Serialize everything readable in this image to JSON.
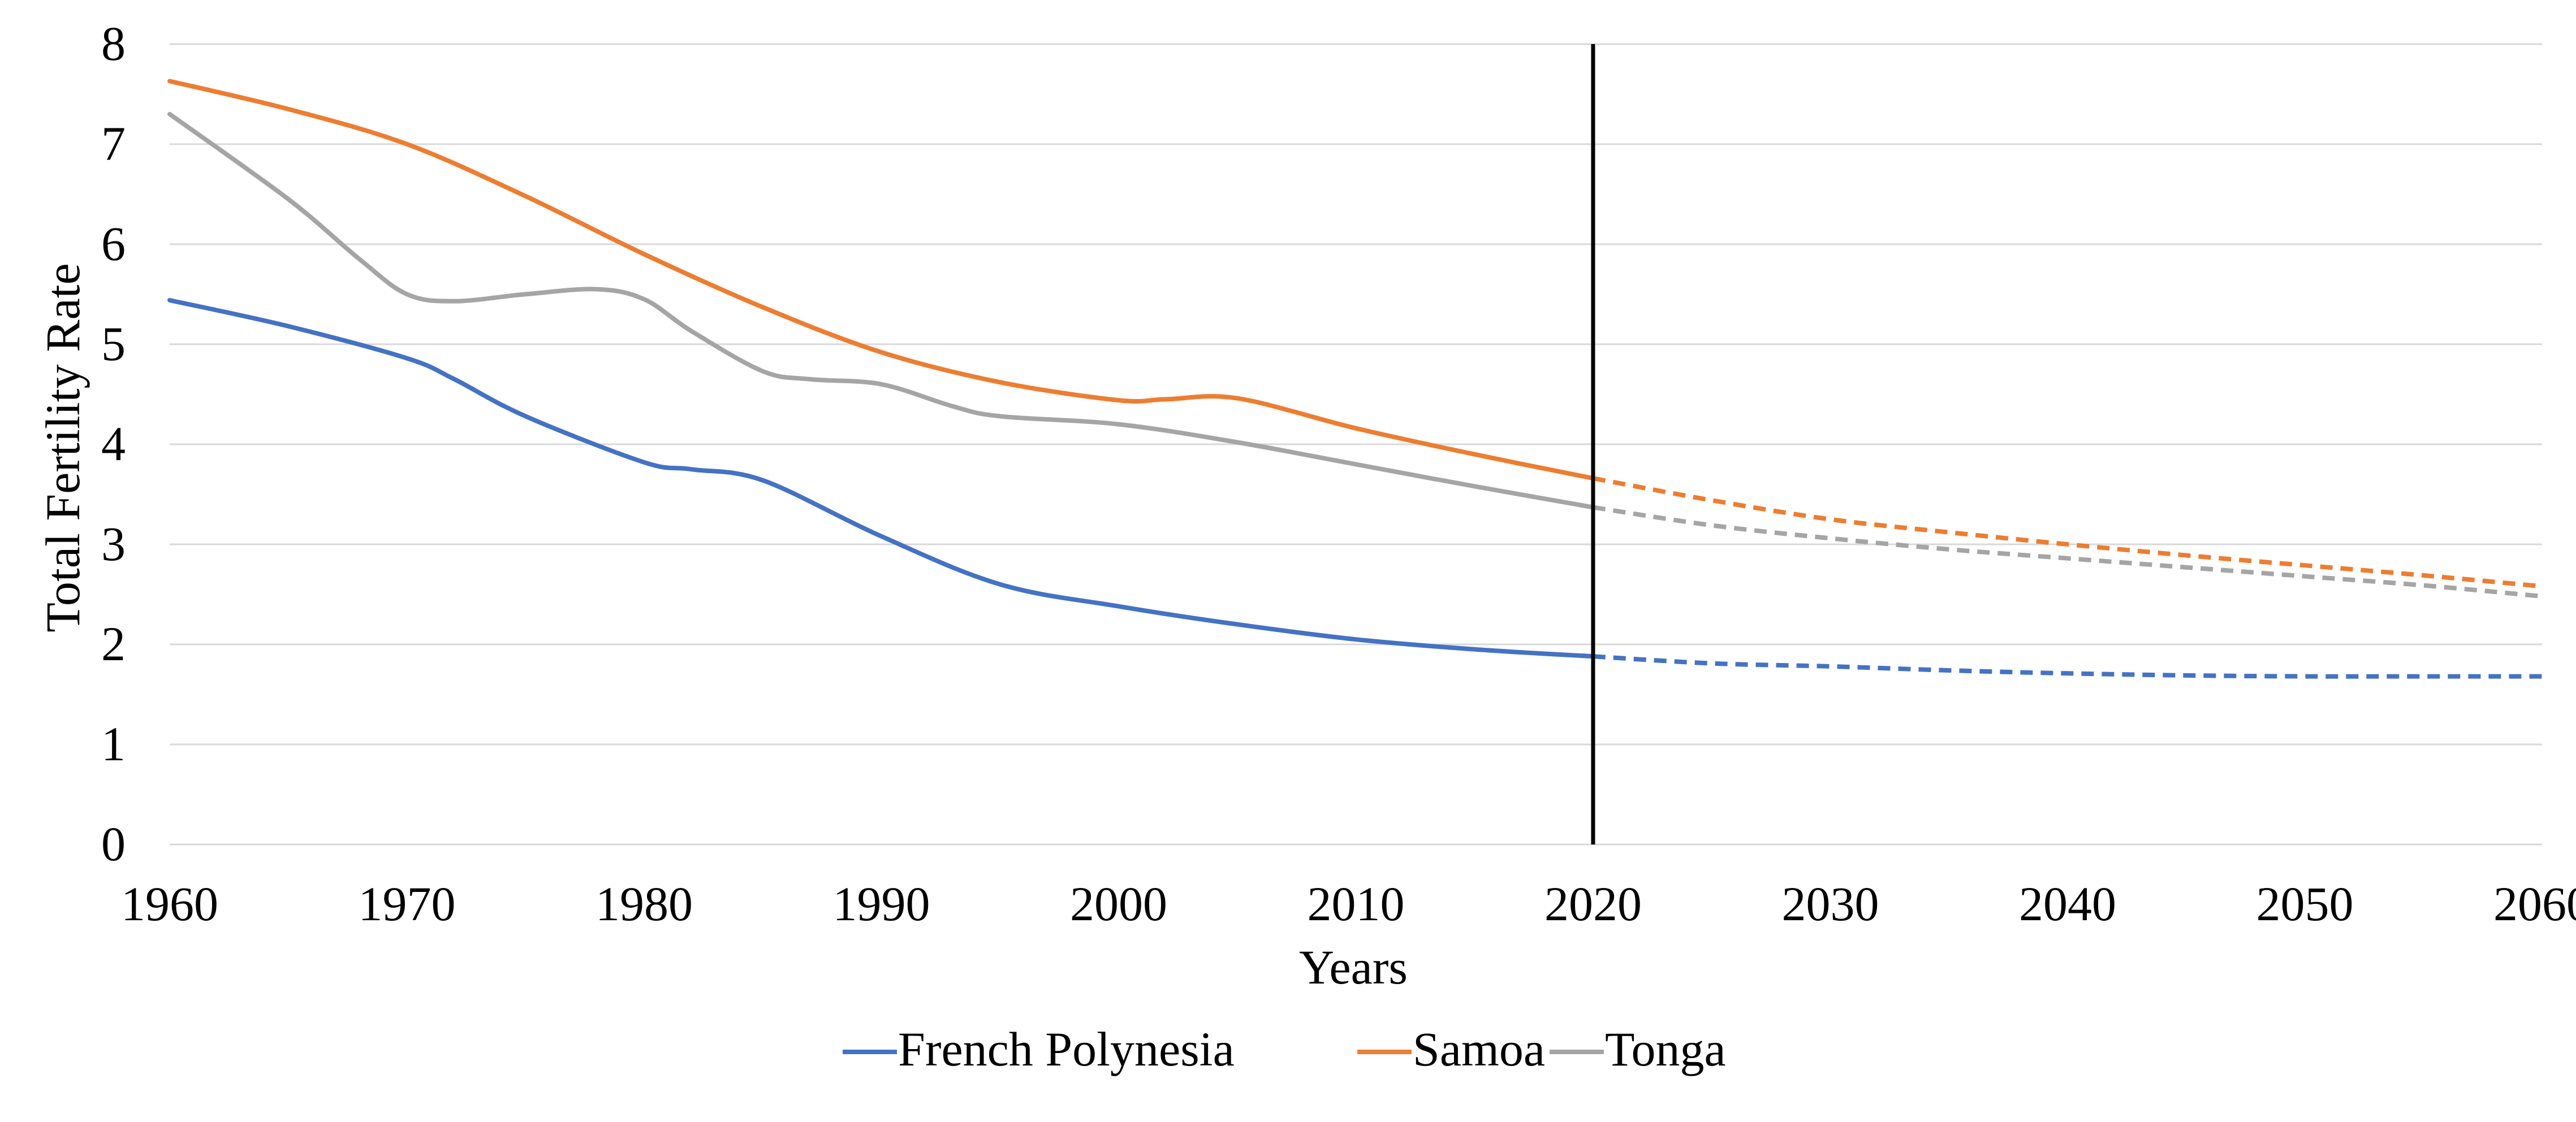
{
  "chart_data": {
    "type": "line",
    "title": "",
    "xlabel": "Years",
    "ylabel": "Total Fertility Rate",
    "xlim": [
      1960,
      2060
    ],
    "ylim": [
      0,
      8
    ],
    "x_ticks": [
      1960,
      1970,
      1980,
      1990,
      2000,
      2010,
      2020,
      2030,
      2040,
      2050,
      2060
    ],
    "y_ticks": [
      0,
      1,
      2,
      3,
      4,
      5,
      6,
      7,
      8
    ],
    "grid": "horizontal",
    "legend": "bottom-center",
    "reference_line": {
      "x": 2020,
      "color": "#000000"
    },
    "observed_until": 2020,
    "series": [
      {
        "name": "French Polynesia",
        "color": "#4472C4",
        "x": [
          1960,
          1965,
          1970,
          1972,
          1975,
          1980,
          1982,
          1985,
          1990,
          1995,
          2000,
          2005,
          2010,
          2015,
          2020,
          2025,
          2030,
          2035,
          2040,
          2045,
          2050,
          2055,
          2060
        ],
        "values": [
          5.44,
          5.18,
          4.86,
          4.65,
          4.28,
          3.82,
          3.75,
          3.64,
          3.08,
          2.6,
          2.38,
          2.2,
          2.05,
          1.95,
          1.88,
          1.81,
          1.78,
          1.74,
          1.71,
          1.69,
          1.68,
          1.68,
          1.68
        ]
      },
      {
        "name": "Samoa",
        "color": "#ED7D31",
        "x": [
          1960,
          1965,
          1970,
          1975,
          1980,
          1985,
          1990,
          1995,
          2000,
          2002,
          2005,
          2010,
          2015,
          2020,
          2025,
          2030,
          2035,
          2040,
          2045,
          2050,
          2055,
          2060
        ],
        "values": [
          7.63,
          7.35,
          7.0,
          6.48,
          5.9,
          5.37,
          4.92,
          4.62,
          4.44,
          4.45,
          4.46,
          4.16,
          3.9,
          3.66,
          3.44,
          3.25,
          3.12,
          3.0,
          2.89,
          2.79,
          2.69,
          2.58
        ]
      },
      {
        "name": "Tonga",
        "color": "#A5A5A5",
        "x": [
          1960,
          1965,
          1968,
          1970,
          1972,
          1975,
          1978,
          1980,
          1982,
          1985,
          1987,
          1990,
          1993,
          1995,
          2000,
          2005,
          2010,
          2015,
          2020,
          2025,
          2030,
          2035,
          2040,
          2045,
          2050,
          2055,
          2060
        ],
        "values": [
          7.3,
          6.45,
          5.85,
          5.5,
          5.43,
          5.5,
          5.55,
          5.45,
          5.13,
          4.73,
          4.65,
          4.6,
          4.38,
          4.28,
          4.2,
          4.02,
          3.8,
          3.58,
          3.37,
          3.19,
          3.06,
          2.95,
          2.86,
          2.77,
          2.68,
          2.59,
          2.48
        ]
      }
    ]
  }
}
